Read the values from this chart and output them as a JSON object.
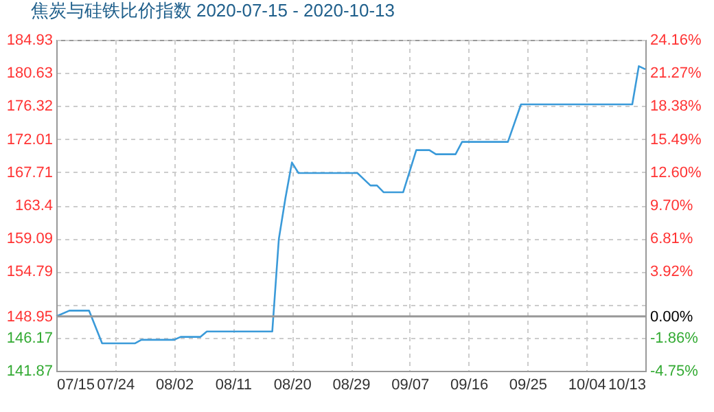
{
  "chart_data": {
    "type": "line",
    "title": "焦炭与硅铁比价指数 2020-07-15 - 2020-10-13",
    "x": [
      "2020-07-15",
      "2020-07-17",
      "2020-07-20",
      "2020-07-22",
      "2020-07-27",
      "2020-07-28",
      "2020-08-02",
      "2020-08-03",
      "2020-08-06",
      "2020-08-07",
      "2020-08-17",
      "2020-08-18",
      "2020-08-19",
      "2020-08-20",
      "2020-08-21",
      "2020-08-30",
      "2020-09-01",
      "2020-09-02",
      "2020-09-03",
      "2020-09-06",
      "2020-09-08",
      "2020-09-10",
      "2020-09-11",
      "2020-09-14",
      "2020-09-15",
      "2020-09-22",
      "2020-09-24",
      "2020-10-11",
      "2020-10-12",
      "2020-10-13"
    ],
    "series": [
      {
        "color": "#3a9ad9",
        "values": [
          148.95,
          149.7,
          149.7,
          145.44,
          145.44,
          145.9,
          145.9,
          146.28,
          146.28,
          146.99,
          146.99,
          159.0,
          164.3,
          168.97,
          167.6,
          167.6,
          165.98,
          165.98,
          165.1,
          165.1,
          170.58,
          170.58,
          170.04,
          170.04,
          171.65,
          171.65,
          176.53,
          176.53,
          181.5,
          181.1
        ]
      }
    ],
    "xlim": [
      "2020-07-15",
      "2020-10-13"
    ],
    "xticks": [
      {
        "value": "2020-07-15",
        "label": "07/15"
      },
      {
        "value": "2020-07-24",
        "label": "07/24"
      },
      {
        "value": "2020-08-02",
        "label": "08/02"
      },
      {
        "value": "2020-08-11",
        "label": "08/11"
      },
      {
        "value": "2020-08-20",
        "label": "08/20"
      },
      {
        "value": "2020-08-29",
        "label": "08/29"
      },
      {
        "value": "2020-09-07",
        "label": "09/07"
      },
      {
        "value": "2020-09-16",
        "label": "09/16"
      },
      {
        "value": "2020-09-25",
        "label": "09/25"
      },
      {
        "value": "2020-10-04",
        "label": "10/04"
      },
      {
        "value": "2020-10-13",
        "label": "10/13"
      }
    ],
    "ylim": [
      141.87,
      184.93
    ],
    "yticks": [
      141.87,
      146.17,
      148.95,
      {
        "value": 150.48,
        "label": null
      },
      154.79,
      159.09,
      163.4,
      167.71,
      172.01,
      176.32,
      180.63,
      184.93
    ],
    "y2lim": [
      -4.75,
      24.16
    ],
    "y2ticks": [
      {
        "value": -4.75,
        "label": "-4.75%"
      },
      {
        "value": -1.86,
        "label": "-1.86%"
      },
      {
        "value": 0,
        "label": "0.00%"
      },
      {
        "value": 1.03,
        "label": null
      },
      {
        "value": 3.92,
        "label": "3.92%"
      },
      {
        "value": 6.81,
        "label": "6.81%"
      },
      {
        "value": 9.7,
        "label": "9.70%"
      },
      {
        "value": 12.6,
        "label": "12.60%"
      },
      {
        "value": 15.49,
        "label": "15.49%"
      },
      {
        "value": 18.38,
        "label": "18.38%"
      },
      {
        "value": 21.27,
        "label": "21.27%"
      },
      {
        "value": 24.16,
        "label": "24.16%"
      }
    ],
    "ref_lines": [
      {
        "axis": "y2",
        "value": 0,
        "color": "#999999"
      }
    ],
    "grid": true,
    "line_style": "solid"
  }
}
